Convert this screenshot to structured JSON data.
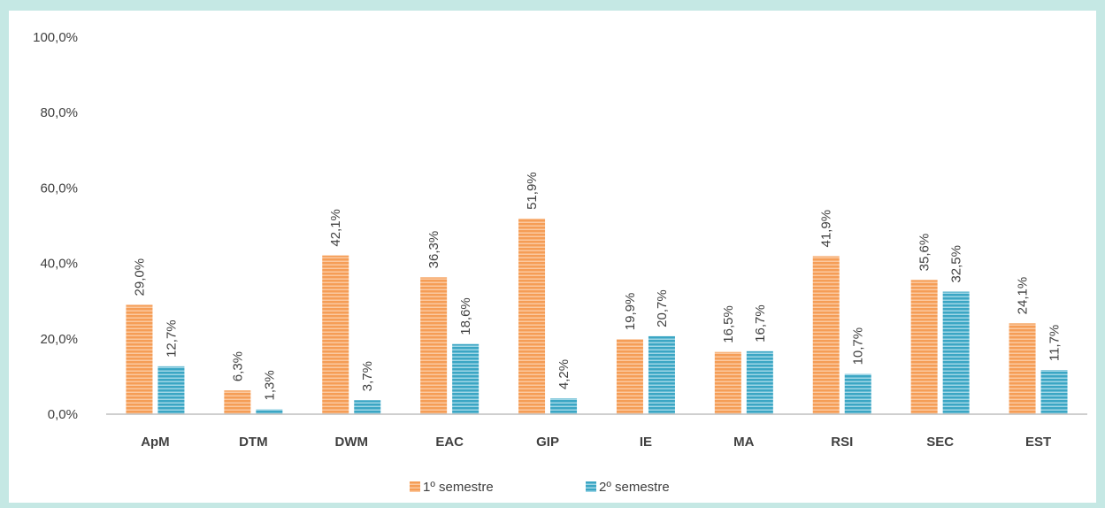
{
  "chart_data": {
    "type": "bar",
    "categories": [
      "ApM",
      "DTM",
      "DWM",
      "EAC",
      "GIP",
      "IE",
      "MA",
      "RSI",
      "SEC",
      "EST"
    ],
    "series": [
      {
        "name": "1º semestre",
        "values": [
          29.0,
          6.3,
          42.1,
          36.3,
          51.9,
          19.9,
          16.5,
          41.9,
          35.6,
          24.1
        ],
        "labels": [
          "29,0%",
          "6,3%",
          "42,1%",
          "36,3%",
          "51,9%",
          "19,9%",
          "16,5%",
          "41,9%",
          "35,6%",
          "24,1%"
        ],
        "color": "#f59d56"
      },
      {
        "name": "2º semestre",
        "values": [
          12.7,
          1.3,
          3.7,
          18.6,
          4.2,
          20.7,
          16.7,
          10.7,
          32.5,
          11.7
        ],
        "labels": [
          "12,7%",
          "1,3%",
          "3,7%",
          "18,6%",
          "4,2%",
          "20,7%",
          "16,7%",
          "10,7%",
          "32,5%",
          "11,7%"
        ],
        "color": "#3ba6c4"
      }
    ],
    "yticks": [
      {
        "value": 0,
        "label": "0,0%"
      },
      {
        "value": 20,
        "label": "20,0%"
      },
      {
        "value": 40,
        "label": "40,0%"
      },
      {
        "value": 60,
        "label": "60,0%"
      },
      {
        "value": 80,
        "label": "80,0%"
      },
      {
        "value": 100,
        "label": "100,0%"
      }
    ],
    "ylim": [
      0,
      100
    ],
    "grid": false,
    "legend_position": "bottom",
    "title": "",
    "xlabel": "",
    "ylabel": ""
  }
}
